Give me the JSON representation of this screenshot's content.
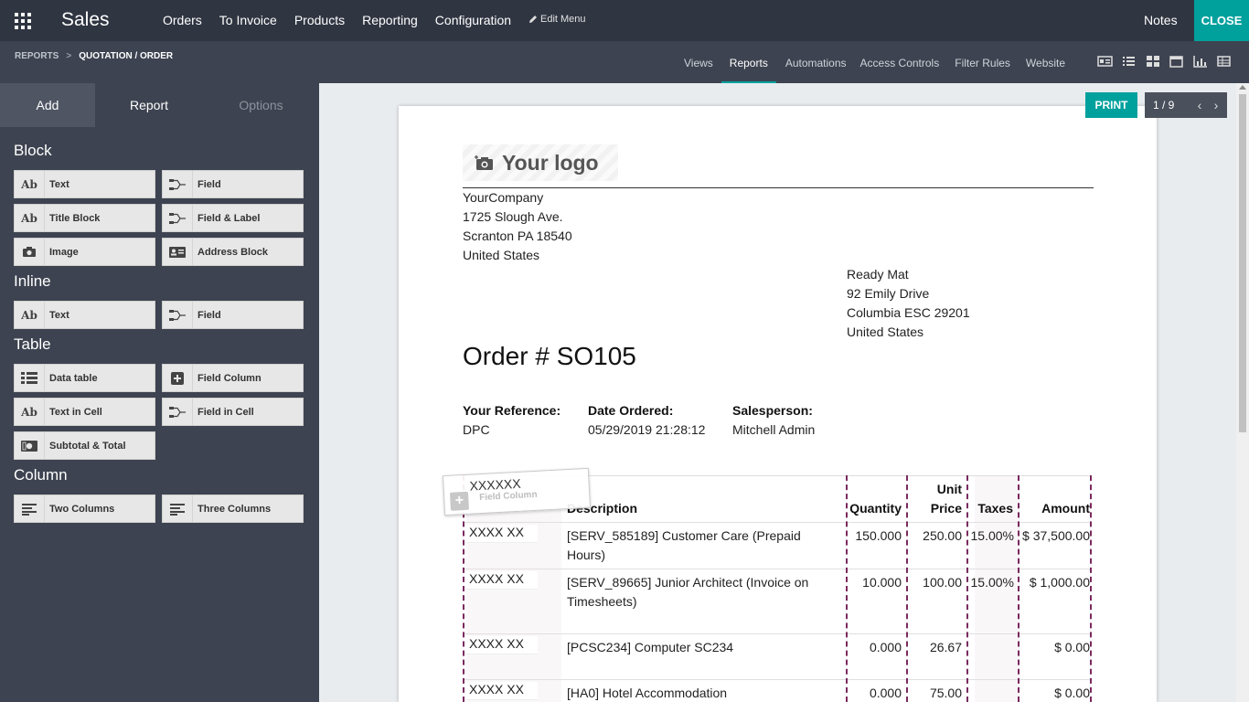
{
  "topbar": {
    "app_name": "Sales",
    "menu": [
      "Orders",
      "To Invoice",
      "Products",
      "Reporting",
      "Configuration"
    ],
    "edit_menu": "Edit Menu",
    "notes": "Notes",
    "close": "CLOSE"
  },
  "subbar": {
    "breadcrumb_root": "REPORTS",
    "breadcrumb_sep": ">",
    "breadcrumb_current": "QUOTATION / ORDER",
    "tabs": [
      "Views",
      "Reports",
      "Automations",
      "Access Controls",
      "Filter Rules",
      "Website"
    ],
    "active_tab": "Reports"
  },
  "sidebar": {
    "tabs": [
      "Add",
      "Report",
      "Options"
    ],
    "sections": {
      "block": "Block",
      "inline": "Inline",
      "table": "Table",
      "column": "Column"
    },
    "block_items": [
      "Text",
      "Field",
      "Title Block",
      "Field & Label",
      "Image",
      "Address Block"
    ],
    "inline_items": [
      "Text",
      "Field"
    ],
    "table_items": [
      "Data table",
      "Field Column",
      "Text in Cell",
      "Field in Cell",
      "Subtotal & Total"
    ],
    "column_items": [
      "Two Columns",
      "Three Columns"
    ]
  },
  "toolbar": {
    "print": "PRINT",
    "pager": "1 / 9"
  },
  "document": {
    "logo": "Your logo",
    "company": [
      "YourCompany",
      "1725 Slough Ave.",
      "Scranton PA 18540",
      "United States"
    ],
    "customer": [
      "Ready Mat",
      "92 Emily Drive",
      "Columbia ESC 29201",
      "United States"
    ],
    "title": "Order # SO105",
    "info": {
      "ref_label": "Your Reference:",
      "ref_value": "DPC",
      "date_label": "Date Ordered:",
      "date_value": "05/29/2019 21:28:12",
      "sales_label": "Salesperson:",
      "sales_value": "Mitchell Admin"
    },
    "table": {
      "headers": [
        "Description",
        "Quantity",
        "Unit",
        "Price",
        "Taxes",
        "Amount"
      ],
      "placeholder": "XXXX XX",
      "rows": [
        {
          "description": "[SERV_585189] Customer Care (Prepaid",
          "description2": "Hours)",
          "quantity": "150.000",
          "price": "250.00",
          "taxes": "15.00%",
          "amount": "$ 37,500.00"
        },
        {
          "description": "[SERV_89665] Junior Architect (Invoice on",
          "description2": "Timesheets)",
          "quantity": "10.000",
          "price": "100.00",
          "taxes": "15.00%",
          "amount": "$ 1,000.00"
        },
        {
          "description": "[PCSC234] Computer SC234",
          "description2": "",
          "quantity": "0.000",
          "price": "26.67",
          "taxes": "",
          "amount": "$ 0.00"
        },
        {
          "description": "[HA0] Hotel Accommodation",
          "description2": "",
          "quantity": "0.000",
          "price": "75.00",
          "taxes": "",
          "amount": "$ 0.00"
        }
      ]
    },
    "drag_ghost": {
      "text": "XXXXXX",
      "label": "Field Column"
    }
  },
  "colors": {
    "topbar": "#2f3541",
    "subbar": "#3d4350",
    "accent": "#00a09d",
    "dashed_outline": "#7a2a5f"
  }
}
